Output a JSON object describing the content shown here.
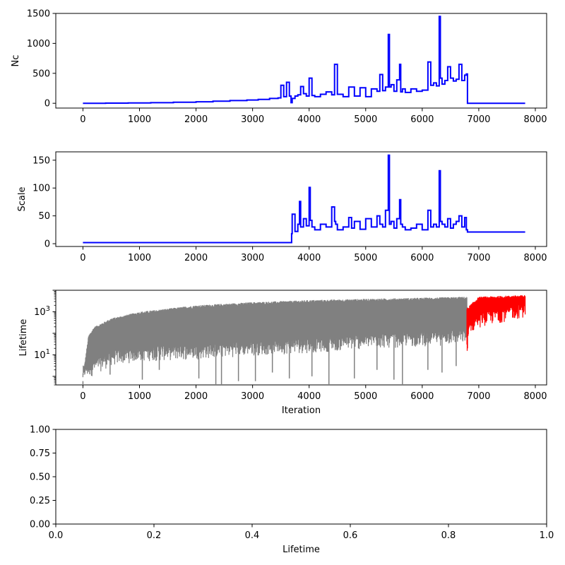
{
  "colors": {
    "series_blue": "#0000ff",
    "series_gray": "#808080",
    "series_red": "#ff0000",
    "axis": "#000000"
  },
  "chart_data": [
    {
      "type": "line",
      "title": "",
      "xlabel": "",
      "ylabel": "Nc",
      "xlim": [
        -480,
        8200
      ],
      "ylim": [
        -80,
        1500
      ],
      "xticks": [
        0,
        1000,
        2000,
        3000,
        4000,
        5000,
        6000,
        7000,
        8000
      ],
      "yticks": [
        0,
        500,
        1000,
        1500
      ],
      "grid": false,
      "series": [
        {
          "color": "#0000ff",
          "style": "step",
          "x": [
            0,
            400,
            800,
            1200,
            1600,
            2000,
            2300,
            2600,
            2900,
            3100,
            3300,
            3450,
            3500,
            3550,
            3600,
            3650,
            3680,
            3700,
            3750,
            3800,
            3850,
            3900,
            3950,
            4000,
            4050,
            4100,
            4200,
            4300,
            4400,
            4450,
            4500,
            4600,
            4700,
            4800,
            4900,
            5000,
            5100,
            5200,
            5250,
            5300,
            5350,
            5400,
            5420,
            5450,
            5500,
            5550,
            5600,
            5620,
            5650,
            5700,
            5800,
            5900,
            6000,
            6100,
            6150,
            6200,
            6250,
            6300,
            6320,
            6350,
            6400,
            6450,
            6500,
            6550,
            6600,
            6650,
            6700,
            6750,
            6780,
            6800,
            7000,
            7500,
            7820
          ],
          "y": [
            0,
            2,
            5,
            10,
            18,
            25,
            35,
            45,
            55,
            65,
            80,
            90,
            300,
            110,
            350,
            120,
            10,
            80,
            120,
            140,
            280,
            160,
            120,
            420,
            130,
            110,
            150,
            190,
            140,
            650,
            150,
            110,
            270,
            120,
            260,
            110,
            240,
            200,
            480,
            210,
            270,
            1150,
            270,
            310,
            200,
            390,
            650,
            190,
            240,
            180,
            240,
            200,
            220,
            690,
            300,
            340,
            290,
            1450,
            420,
            320,
            380,
            610,
            420,
            370,
            400,
            650,
            380,
            470,
            490,
            0,
            0,
            0,
            0
          ]
        }
      ]
    },
    {
      "type": "line",
      "title": "",
      "xlabel": "",
      "ylabel": "Scale",
      "xlim": [
        -480,
        8200
      ],
      "ylim": [
        -5,
        165
      ],
      "xticks": [
        0,
        1000,
        2000,
        3000,
        4000,
        5000,
        6000,
        7000,
        8000
      ],
      "yticks": [
        0,
        50,
        100,
        150
      ],
      "grid": false,
      "series": [
        {
          "color": "#0000ff",
          "style": "step",
          "x": [
            0,
            3650,
            3690,
            3700,
            3750,
            3800,
            3830,
            3850,
            3900,
            3950,
            4000,
            4020,
            4050,
            4100,
            4200,
            4300,
            4400,
            4450,
            4470,
            4500,
            4600,
            4700,
            4750,
            4800,
            4900,
            5000,
            5100,
            5200,
            5250,
            5300,
            5350,
            5400,
            5420,
            5450,
            5500,
            5550,
            5600,
            5620,
            5650,
            5700,
            5800,
            5900,
            6000,
            6100,
            6150,
            6200,
            6250,
            6300,
            6320,
            6350,
            6400,
            6450,
            6500,
            6550,
            6600,
            6650,
            6700,
            6750,
            6780,
            6800,
            7000,
            7500,
            7820
          ],
          "y": [
            2,
            2,
            18,
            53,
            22,
            35,
            76,
            30,
            45,
            32,
            101,
            42,
            30,
            25,
            35,
            30,
            66,
            40,
            35,
            25,
            30,
            47,
            28,
            40,
            26,
            45,
            30,
            50,
            35,
            30,
            60,
            159,
            35,
            40,
            28,
            45,
            79,
            35,
            30,
            25,
            28,
            35,
            25,
            60,
            30,
            35,
            30,
            131,
            40,
            35,
            30,
            45,
            28,
            35,
            40,
            50,
            30,
            47,
            25,
            21,
            21,
            21,
            21
          ]
        }
      ]
    },
    {
      "type": "line",
      "title": "",
      "xlabel": "Iteration",
      "ylabel": "Lifetime",
      "xlim": [
        -480,
        8200
      ],
      "ylim": [
        0.4,
        10000
      ],
      "yscale": "log",
      "xticks": [
        0,
        1000,
        2000,
        3000,
        4000,
        5000,
        6000,
        7000,
        8000
      ],
      "yticks": [
        10,
        1000
      ],
      "ytick_labels": [
        "10^1",
        "10^3"
      ],
      "grid": false,
      "series": [
        {
          "color": "#808080",
          "style": "dense-oscillation",
          "x_range": [
            0,
            6790
          ],
          "upper_envelope": {
            "x": [
              0,
              100,
              200,
              500,
              1000,
              2000,
              3000,
              4000,
              5000,
              6000,
              6790
            ],
            "y": [
              1,
              80,
              200,
              500,
              1000,
              2000,
              2800,
              3500,
              4000,
              4500,
              5000
            ]
          },
          "lower_envelope": {
            "x": [
              0,
              500,
              1000,
              2000,
              3000,
              4000,
              5000,
              6000,
              6790
            ],
            "y": [
              1,
              5,
              8,
              10,
              15,
              20,
              30,
              40,
              50
            ]
          },
          "dips": [
            {
              "x": 0,
              "y": 0.4
            },
            {
              "x": 480,
              "y": 1.2
            },
            {
              "x": 1050,
              "y": 0.7
            },
            {
              "x": 1350,
              "y": 2
            },
            {
              "x": 2050,
              "y": 0.8
            },
            {
              "x": 2350,
              "y": 0.4
            },
            {
              "x": 2450,
              "y": 0.4
            },
            {
              "x": 2750,
              "y": 0.6
            },
            {
              "x": 3050,
              "y": 0.6
            },
            {
              "x": 3350,
              "y": 1.5
            },
            {
              "x": 3650,
              "y": 0.8
            },
            {
              "x": 4050,
              "y": 1.0
            },
            {
              "x": 4350,
              "y": 0.4
            },
            {
              "x": 4800,
              "y": 0.8
            },
            {
              "x": 5200,
              "y": 2
            },
            {
              "x": 5500,
              "y": 0.7
            },
            {
              "x": 5650,
              "y": 0.4
            },
            {
              "x": 6100,
              "y": 2
            },
            {
              "x": 6350,
              "y": 1.5
            },
            {
              "x": 6600,
              "y": 3
            }
          ]
        },
        {
          "color": "#ff0000",
          "style": "dense-oscillation",
          "x_range": [
            6790,
            7820
          ],
          "upper_envelope": {
            "x": [
              6790,
              7000,
              7400,
              7820
            ],
            "y": [
              1500,
              5000,
              5500,
              6000
            ]
          },
          "lower_envelope": {
            "x": [
              6790,
              6850,
              7000,
              7500,
              7820
            ],
            "y": [
              20,
              150,
              300,
              600,
              900
            ]
          },
          "dips": [
            {
              "x": 6800,
              "y": 20
            }
          ]
        }
      ]
    },
    {
      "type": "line",
      "title": "",
      "xlabel": "Lifetime",
      "ylabel": "",
      "xlim": [
        0,
        1
      ],
      "ylim": [
        0,
        1
      ],
      "xticks": [
        0.0,
        0.2,
        0.4,
        0.6,
        0.8,
        1.0
      ],
      "xtick_labels": [
        "0.0",
        "0.2",
        "0.4",
        "0.6",
        "0.8",
        "1.0"
      ],
      "yticks": [
        0.0,
        0.25,
        0.5,
        0.75,
        1.0
      ],
      "ytick_labels": [
        "0.00",
        "0.25",
        "0.50",
        "0.75",
        "1.00"
      ],
      "grid": false,
      "series": []
    }
  ]
}
